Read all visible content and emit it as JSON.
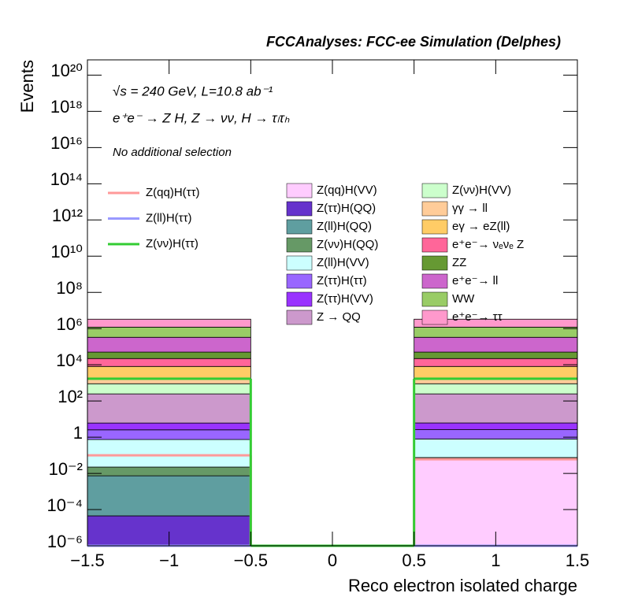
{
  "chart_data": {
    "type": "histogram",
    "title": "FCCAnalyses: FCC-ee Simulation (Delphes)",
    "annotations": [
      "√s = 240 GeV, L=10.8 ab⁻¹",
      "e⁺e⁻ → Z H, Z → νν, H → τₗτₕ",
      "No additional selection"
    ],
    "xlabel": "Reco electron isolated charge",
    "ylabel": "Events",
    "log_y": true,
    "bins": [
      -1.5,
      -0.5,
      0.5,
      1.5
    ],
    "xlim": [
      -1.5,
      1.5
    ],
    "ylim": [
      1e-06,
      7e+20
    ],
    "xticks": [
      {
        "value": -1.5,
        "label": "−1.5"
      },
      {
        "value": -1,
        "label": "−1"
      },
      {
        "value": -0.5,
        "label": "−0.5"
      },
      0,
      0.5,
      1,
      1.5
    ],
    "yticks": [
      {
        "value": 1e-06,
        "label": "10⁻⁶"
      },
      {
        "value": 0.0001,
        "label": "10⁻⁴"
      },
      {
        "value": 0.01,
        "label": "10⁻²"
      },
      1,
      {
        "value": 100,
        "label": "10²"
      },
      {
        "value": 10000,
        "label": "10⁴"
      },
      {
        "value": 1000000,
        "label": "10⁶"
      },
      {
        "value": 100000000,
        "label": "10⁸"
      },
      {
        "value": 10000000000,
        "label": "10¹⁰"
      },
      {
        "value": 1000000000000,
        "label": "10¹²"
      },
      {
        "value": 100000000000000,
        "label": "10¹⁴"
      },
      {
        "value": 10000000000000000,
        "label": "10¹⁶"
      },
      {
        "value": 1000000000000000000,
        "label": "10¹⁸"
      },
      {
        "value": 100000000000000000000,
        "label": "10²⁰"
      }
    ],
    "stack": [
      {
        "name": "Z(qq)H(VV)",
        "color": "#ffccff",
        "values": [
          0,
          0,
          0.06
        ]
      },
      {
        "name": "Z(ττ)H(QQ)",
        "color": "#6633cc",
        "values": [
          4.5e-05,
          0,
          1e-05
        ]
      },
      {
        "name": "Z(ll)H(QQ)",
        "color": "#5f9ea0",
        "values": [
          0.0073,
          0,
          0.005
        ]
      },
      {
        "name": "Z(νν)H(QQ)",
        "color": "#669966",
        "values": [
          0.015,
          0,
          0.01
        ]
      },
      {
        "name": "Z(ll)H(VV)",
        "color": "#ccffff",
        "values": [
          0.72,
          0,
          0.72
        ]
      },
      {
        "name": "Z(ττ)H(ττ)",
        "color": "#9966ff",
        "values": [
          1.8,
          0,
          1.8
        ]
      },
      {
        "name": "Z(ττ)H(VV)",
        "color": "#9933ff",
        "values": [
          3.5,
          0,
          3.5
        ]
      },
      {
        "name": "Z → QQ",
        "color": "#cc99cc",
        "values": [
          240,
          0,
          240
        ]
      },
      {
        "name": "Z(νν)H(VV)",
        "color": "#ccffcc",
        "values": [
          650,
          0,
          650
        ]
      },
      {
        "name": "γγ → ll",
        "color": "#ffcc99",
        "values": [
          900,
          0,
          900
        ]
      },
      {
        "name": "eγ → eZ(ll)",
        "color": "#ffcc66",
        "values": [
          6300,
          0,
          6300
        ]
      },
      {
        "name": "e⁺e⁻→ νₑνₑ Z",
        "color": "#ff6699",
        "values": [
          14000,
          0,
          14000
        ]
      },
      {
        "name": "ZZ",
        "color": "#669933",
        "values": [
          28000,
          0,
          28000
        ]
      },
      {
        "name": "e⁺e⁻→ ll",
        "color": "#cc66cc",
        "values": [
          280000,
          0,
          280000
        ]
      },
      {
        "name": "WW",
        "color": "#99cc66",
        "values": [
          870000,
          0,
          870000
        ]
      },
      {
        "name": "e⁺e⁻→ ττ",
        "color": "#ff99cc",
        "values": [
          2100000,
          0,
          2100000
        ]
      }
    ],
    "lines": [
      {
        "name": "Z(qq)H(ττ)",
        "color": "#ff9999",
        "values": [
          0.1,
          0,
          0.06
        ]
      },
      {
        "name": "Z(ll)H(ττ)",
        "color": "#9999ff",
        "values": [
          0,
          0,
          0
        ]
      },
      {
        "name": "Z(νν)H(ττ)",
        "color": "#33cc33",
        "values": [
          1700,
          0,
          1700
        ]
      }
    ]
  }
}
